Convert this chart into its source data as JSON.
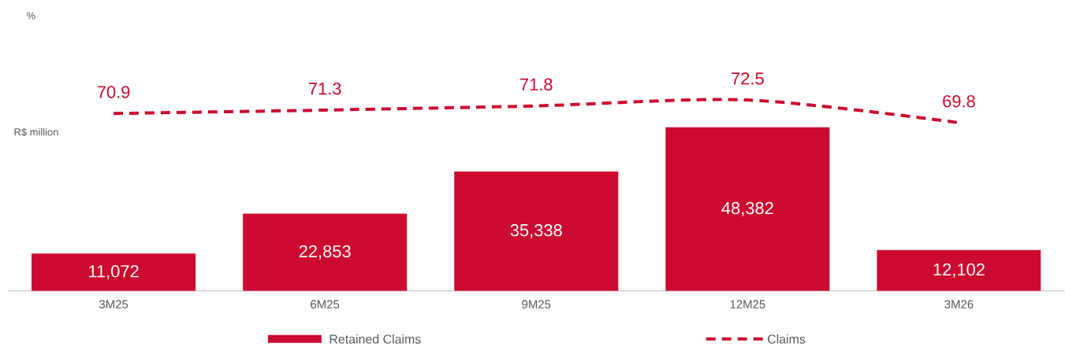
{
  "chart_data": [
    {
      "type": "bar",
      "categories": [
        "3M25",
        "6M25",
        "9M25",
        "12M25",
        "3M26"
      ],
      "ylabel": "R$ million",
      "tick_labels": "x",
      "legend": "bottom",
      "series": [
        {
          "name": "Retained Claims",
          "color": "#cc0a2f",
          "values": [
            11072,
            22853,
            35338,
            48382,
            12102
          ],
          "value_labels": [
            "11,072",
            "22,853",
            "35,338",
            "48,382",
            "12,102"
          ]
        }
      ]
    },
    {
      "type": "line",
      "categories": [
        null,
        null,
        null,
        null,
        null
      ],
      "annotations": [
        "%"
      ],
      "tick_labels": false,
      "legend": "bottom",
      "data_labels": true,
      "line_style": "dashed",
      "series": [
        {
          "name": "Claims",
          "color": "#cc0a2f",
          "values": [
            70.9,
            71.3,
            71.8,
            72.5,
            69.8
          ]
        }
      ]
    }
  ]
}
